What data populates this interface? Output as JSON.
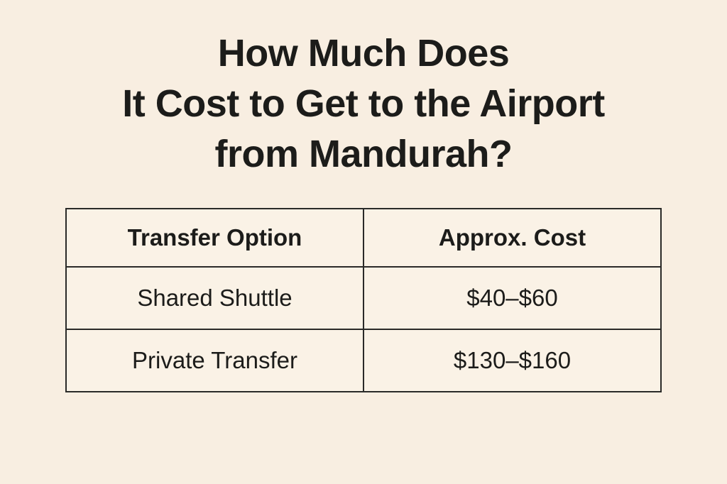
{
  "title": {
    "lines": [
      "How Much Does",
      "It Cost to Get to the Airport",
      "from Mandurah?"
    ]
  },
  "table": {
    "headers": [
      "Transfer Option",
      "Approx. Cost"
    ],
    "rows": [
      [
        "Shared Shuttle",
        "$40–$60"
      ],
      [
        "Private Transfer",
        "$130–$160"
      ]
    ]
  }
}
